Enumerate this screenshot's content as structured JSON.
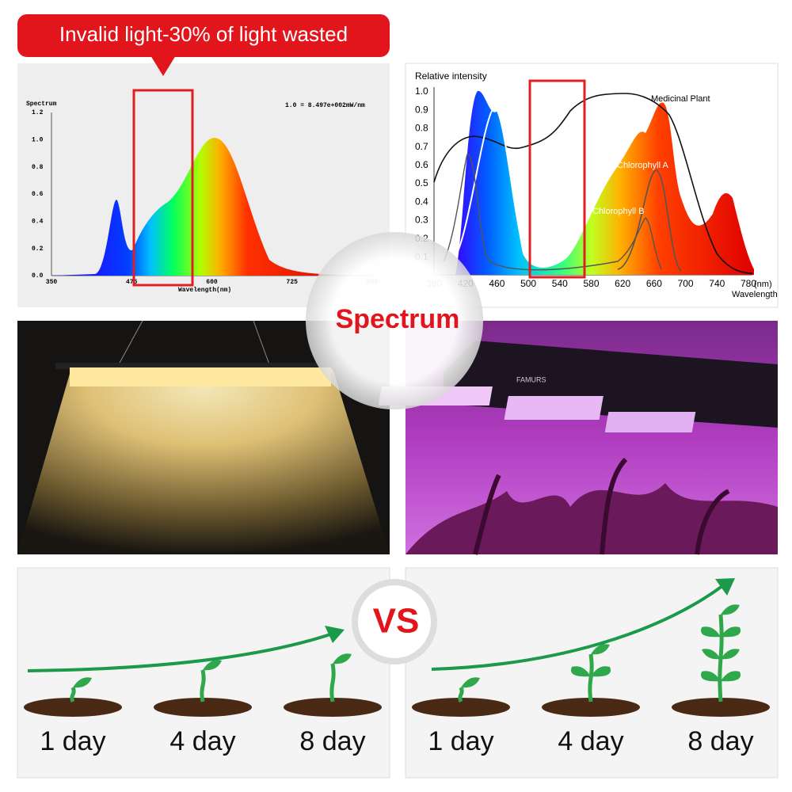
{
  "banner": "Invalid light-30% of light wasted",
  "badges": {
    "spectrum": "Spectrum",
    "vs": "VS"
  },
  "left_chart": {
    "title": "Spectrum",
    "note": "1.0 = 8.497e+002mW/nm",
    "yticks": [
      "0.0",
      "0.2",
      "0.4",
      "0.6",
      "0.8",
      "1.0",
      "1.2"
    ],
    "xticks": [
      "350",
      "475",
      "600",
      "725",
      "850"
    ],
    "xlabel": "Wavelength(nm)"
  },
  "right_chart": {
    "ylabel": "Relative intensity",
    "yticks": [
      "1.0",
      "0.9",
      "0.8",
      "0.7",
      "0.6",
      "0.5",
      "0.4",
      "0.3",
      "0.2",
      "0.1"
    ],
    "xticks": [
      "380",
      "420",
      "460",
      "500",
      "540",
      "580",
      "620",
      "660",
      "700",
      "740",
      "780"
    ],
    "xunit": "(nm)",
    "xlabel": "Wavelength",
    "curves": [
      "Medicinal Plant",
      "Chlorophyll A",
      "Chlorophyll B"
    ]
  },
  "photo": {
    "brand": "FAMURS"
  },
  "growth": {
    "left": [
      "1 day",
      "4 day",
      "8 day"
    ],
    "right": [
      "1 day",
      "4 day",
      "8 day"
    ]
  }
}
